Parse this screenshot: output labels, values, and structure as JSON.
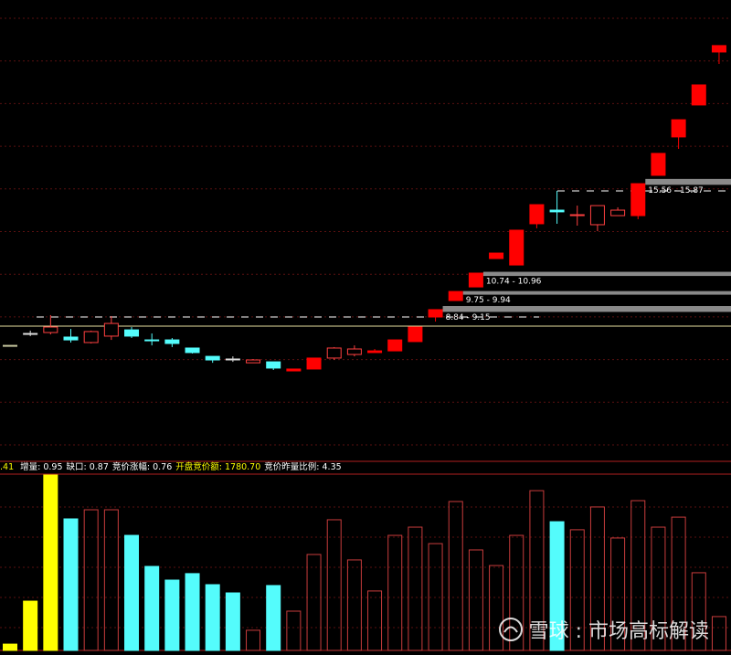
{
  "chart_data": {
    "type": "candlestick",
    "ylim": [
      0.94,
      25.33
    ],
    "open": [
      7.07,
      7.7,
      7.75,
      7.51,
      7.22,
      7.56,
      7.89,
      7.36,
      7.36,
      6.93,
      6.49,
      6.35,
      6.15,
      6.2,
      5.72,
      5.82,
      6.4,
      6.59,
      6.69,
      6.78,
      7.27,
      8.57,
      9.44,
      10.16,
      11.66,
      11.32,
      13.5,
      14.22,
      13.93,
      13.45,
      13.93,
      13.93,
      16.06,
      18.09,
      19.78,
      22.58
    ],
    "high": [
      7.07,
      7.85,
      8.67,
      7.94,
      7.85,
      8.62,
      8.04,
      7.7,
      7.46,
      6.93,
      6.49,
      6.49,
      6.35,
      6.2,
      5.82,
      6.4,
      6.98,
      7.07,
      6.88,
      7.36,
      8.04,
      8.96,
      9.92,
      10.89,
      11.95,
      13.16,
      14.51,
      15.24,
      14.46,
      14.46,
      14.37,
      15.62,
      17.22,
      19.0,
      20.84,
      22.92
    ],
    "low": [
      7.07,
      7.56,
      7.65,
      7.22,
      7.17,
      7.36,
      7.46,
      7.07,
      6.98,
      6.64,
      6.15,
      6.2,
      6.15,
      5.77,
      5.72,
      5.82,
      6.3,
      6.49,
      6.69,
      6.78,
      7.27,
      8.33,
      9.44,
      10.16,
      11.66,
      11.32,
      13.26,
      13.5,
      13.4,
      13.11,
      13.93,
      13.74,
      16.06,
      17.46,
      19.78,
      21.95
    ],
    "close": [
      7.07,
      7.7,
      8.04,
      7.36,
      7.8,
      8.23,
      7.56,
      7.36,
      7.17,
      6.69,
      6.3,
      6.35,
      6.3,
      5.87,
      5.82,
      6.4,
      6.93,
      6.88,
      6.78,
      7.36,
      8.04,
      8.96,
      9.92,
      10.89,
      11.95,
      13.16,
      14.51,
      14.13,
      13.98,
      14.46,
      14.22,
      15.62,
      17.22,
      19.0,
      20.84,
      22.92
    ],
    "colors": [
      "#c8c8a0",
      "#dddddd",
      "#ff4040",
      "#54fcfc",
      "#ff4040",
      "#ff4040",
      "#54fcfc",
      "#54fcfc",
      "#54fcfc",
      "#54fcfc",
      "#54fcfc",
      "#dddddd",
      "#ff4040",
      "#54fcfc",
      "#ff0000",
      "#ff0000",
      "#ff4040",
      "#ff4040",
      "#ff0000",
      "#ff0000",
      "#ff0000",
      "#ff0000",
      "#ff0000",
      "#ff0000",
      "#ff0000",
      "#ff0000",
      "#ff0000",
      "#54fcfc",
      "#ff4040",
      "#ff4040",
      "#ff4040",
      "#ff0000",
      "#ff0000",
      "#ff0000",
      "#ff0000",
      "#ff0000"
    ],
    "fills": [
      "#c8c8a0",
      "#dddddd",
      "none",
      "#54fcfc",
      "none",
      "none",
      "#54fcfc",
      "#54fcfc",
      "#54fcfc",
      "#54fcfc",
      "#54fcfc",
      "#dddddd",
      "none",
      "#54fcfc",
      "#ff0000",
      "#ff0000",
      "none",
      "none",
      "#ff0000",
      "#ff0000",
      "#ff0000",
      "#ff0000",
      "#ff0000",
      "#ff0000",
      "#ff0000",
      "#ff0000",
      "#ff0000",
      "#54fcfc",
      "none",
      "none",
      "none",
      "#ff0000",
      "#ff0000",
      "#ff0000",
      "#ff0000",
      "#ff0000"
    ],
    "gaps": [
      {
        "start": 21,
        "low": 8.84,
        "high": 9.15,
        "label": "8.84 - 9.15"
      },
      {
        "start": 22,
        "low": 9.75,
        "high": 9.94,
        "label": "9.75 - 9.94"
      },
      {
        "start": 23,
        "low": 10.74,
        "high": 10.96,
        "label": "10.74 - 10.96"
      },
      {
        "start": 31,
        "low": 15.56,
        "high": 15.87,
        "label": "15.56 - 15.87"
      }
    ],
    "volume": {
      "ylim": [
        0,
        100
      ],
      "values": [
        3.6,
        28.1,
        100,
        75,
        80.2,
        80.2,
        65.6,
        47.9,
        40.1,
        43.8,
        37.5,
        32.8,
        11.5,
        37,
        22.4,
        54.7,
        74.5,
        51.6,
        33.9,
        65.6,
        70.3,
        60.9,
        84.9,
        57.3,
        48.4,
        65.6,
        91.1,
        73.4,
        68.8,
        81.8,
        64.1,
        85.4,
        70.3,
        76,
        44.3,
        19.3
      ],
      "colors": [
        "#ffff00",
        "#ffff00",
        "#ffff00",
        "#54fcfc",
        "#c83c3c",
        "#c83c3c",
        "#54fcfc",
        "#54fcfc",
        "#54fcfc",
        "#54fcfc",
        "#54fcfc",
        "#54fcfc",
        "#c83c3c",
        "#54fcfc",
        "#c83c3c",
        "#c83c3c",
        "#c83c3c",
        "#c83c3c",
        "#c83c3c",
        "#c83c3c",
        "#c83c3c",
        "#c83c3c",
        "#c83c3c",
        "#c83c3c",
        "#c83c3c",
        "#c83c3c",
        "#c83c3c",
        "#54fcfc",
        "#c83c3c",
        "#c83c3c",
        "#c83c3c",
        "#c83c3c",
        "#c83c3c",
        "#c83c3c",
        "#c83c3c",
        "#c83c3c"
      ],
      "fills": [
        "#ffff00",
        "#ffff00",
        "#ffff00",
        "#54fcfc",
        "none",
        "none",
        "#54fcfc",
        "#54fcfc",
        "#54fcfc",
        "#54fcfc",
        "#54fcfc",
        "#54fcfc",
        "none",
        "#54fcfc",
        "none",
        "none",
        "none",
        "none",
        "none",
        "none",
        "none",
        "none",
        "none",
        "none",
        "none",
        "none",
        "none",
        "#54fcfc",
        "none",
        "none",
        "none",
        "none",
        "none",
        "none",
        "none",
        "none"
      ]
    },
    "info_prefix": ".41",
    "info_items": [
      {
        "text": "增量: 0.95",
        "color": "#ffffff"
      },
      {
        "text": "缺口: 0.87",
        "color": "#ffffff"
      },
      {
        "text": "竞价涨幅: 0.76",
        "color": "#ffffff"
      },
      {
        "text": "开盘竞价额: 1780.70",
        "color": "#ffff00"
      },
      {
        "text": "竞价昨量比例: 4.35",
        "color": "#ffffff"
      }
    ],
    "watermark": "雪球 : 市场高标解读"
  }
}
